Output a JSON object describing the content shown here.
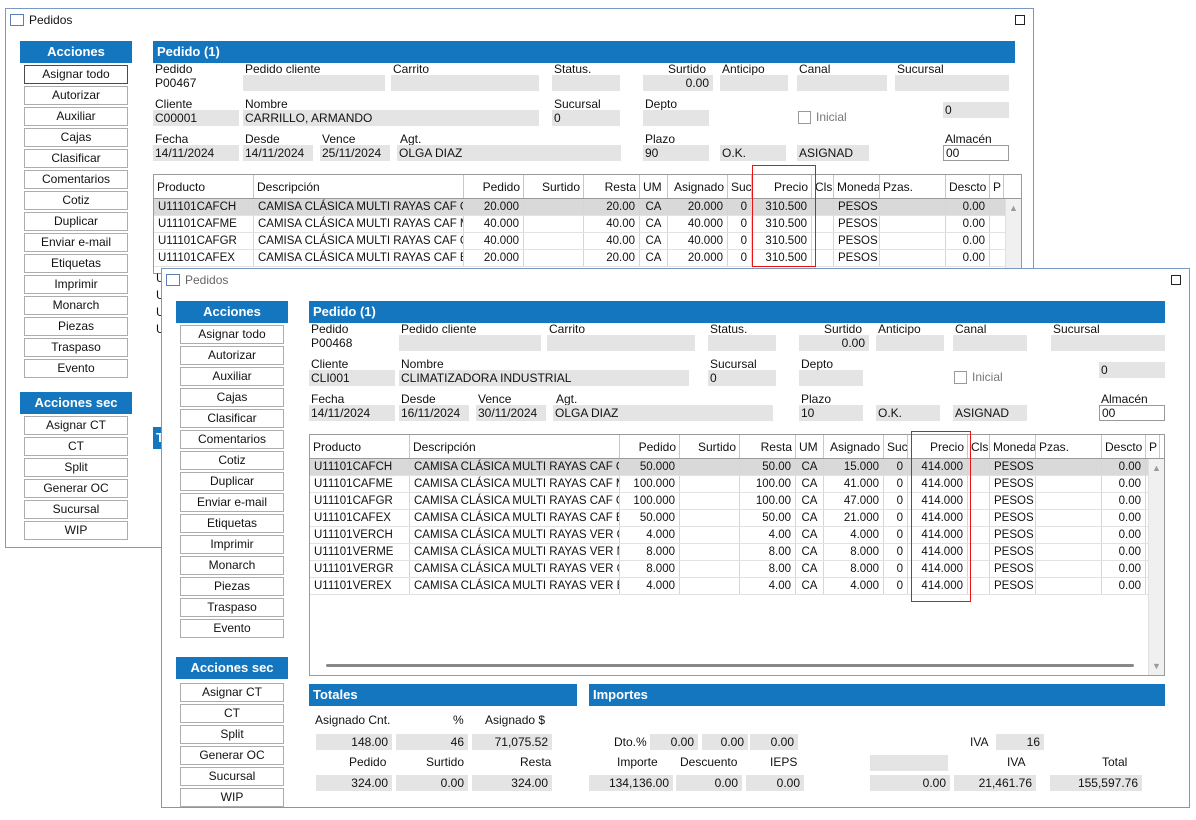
{
  "window_back": {
    "title": "Pedidos",
    "actions_header": "Acciones",
    "actions": [
      "Asignar todo",
      "Autorizar",
      "Auxiliar",
      "Cajas",
      "Clasificar",
      "Comentarios",
      "Cotiz",
      "Duplicar",
      "Enviar e-mail",
      "Etiquetas",
      "Imprimir",
      "Monarch",
      "Piezas",
      "Traspaso",
      "Evento"
    ],
    "actions_sec_header": "Acciones sec",
    "actions_sec": [
      "Asignar CT",
      "CT",
      "Split",
      "Generar OC",
      "Sucursal",
      "WIP"
    ],
    "section_title": "Pedido (1)",
    "labels": {
      "pedido": "Pedido",
      "pedido_cliente": "Pedido cliente",
      "carrito": "Carrito",
      "status": "Status.",
      "surtido": "Surtido",
      "anticipo": "Anticipo",
      "canal": "Canal",
      "sucursal": "Sucursal",
      "cliente": "Cliente",
      "nombre": "Nombre",
      "sucursal2": "Sucursal",
      "depto": "Depto",
      "inicial": "Inicial",
      "fecha": "Fecha",
      "desde": "Desde",
      "vence": "Vence",
      "agt": "Agt.",
      "plazo": "Plazo",
      "almacen": "Almacén"
    },
    "values": {
      "pedido": "P00467",
      "surtido": "0.00",
      "cliente": "C00001",
      "nombre": "CARRILLO, ARMANDO",
      "sucursal2": "0",
      "right_zero": "0",
      "fecha": "14/11/2024",
      "desde": "14/11/2024",
      "vence": "25/11/2024",
      "agt": "OLGA DIAZ",
      "plazo": "90",
      "ok": "O.K.",
      "asignad": "ASIGNAD",
      "almacen": "00"
    },
    "columns": [
      "Producto",
      "Descripción",
      "Pedido",
      "Surtido",
      "Resta",
      "UM",
      "Asignado",
      "Suc.",
      "Precio",
      "Cls",
      "Moneda",
      "Pzas.",
      "Descto",
      "P"
    ],
    "rows": [
      [
        "U11101CAFCH",
        "CAMISA CLÁSICA MULTI RAYAS CAF CH",
        "20.000",
        "",
        "20.00",
        "CA",
        "20.000",
        "0",
        "310.500",
        "",
        "PESOS",
        "",
        "0.00"
      ],
      [
        "U11101CAFME",
        "CAMISA CLÁSICA MULTI RAYAS CAF M",
        "40.000",
        "",
        "40.00",
        "CA",
        "40.000",
        "0",
        "310.500",
        "",
        "PESOS",
        "",
        "0.00"
      ],
      [
        "U11101CAFGR",
        "CAMISA CLÁSICA MULTI RAYAS CAF G",
        "40.000",
        "",
        "40.00",
        "CA",
        "40.000",
        "0",
        "310.500",
        "",
        "PESOS",
        "",
        "0.00"
      ],
      [
        "U11101CAFEX",
        "CAMISA CLÁSICA MULTI RAYAS CAF EX",
        "20.000",
        "",
        "20.00",
        "CA",
        "20.000",
        "0",
        "310.500",
        "",
        "PESOS",
        "",
        "0.00"
      ]
    ],
    "hidden_rows_prefix": [
      "U",
      "U",
      "U",
      "U"
    ],
    "totals_letter": "T"
  },
  "window_front": {
    "title": "Pedidos",
    "actions_header": "Acciones",
    "actions": [
      "Asignar todo",
      "Autorizar",
      "Auxiliar",
      "Cajas",
      "Clasificar",
      "Comentarios",
      "Cotiz",
      "Duplicar",
      "Enviar e-mail",
      "Etiquetas",
      "Imprimir",
      "Monarch",
      "Piezas",
      "Traspaso",
      "Evento"
    ],
    "actions_sec_header": "Acciones sec",
    "actions_sec": [
      "Asignar CT",
      "CT",
      "Split",
      "Generar OC",
      "Sucursal",
      "WIP"
    ],
    "section_title": "Pedido (1)",
    "labels": {
      "pedido": "Pedido",
      "pedido_cliente": "Pedido cliente",
      "carrito": "Carrito",
      "status": "Status.",
      "surtido": "Surtido",
      "anticipo": "Anticipo",
      "canal": "Canal",
      "sucursal": "Sucursal",
      "cliente": "Cliente",
      "nombre": "Nombre",
      "sucursal2": "Sucursal",
      "depto": "Depto",
      "inicial": "Inicial",
      "fecha": "Fecha",
      "desde": "Desde",
      "vence": "Vence",
      "agt": "Agt.",
      "plazo": "Plazo",
      "almacen": "Almacén"
    },
    "values": {
      "pedido": "P00468",
      "surtido": "0.00",
      "cliente": "CLI001",
      "nombre": "CLIMATIZADORA INDUSTRIAL",
      "sucursal2": "0",
      "right_zero": "0",
      "fecha": "14/11/2024",
      "desde": "16/11/2024",
      "vence": "30/11/2024",
      "agt": "OLGA DIAZ",
      "plazo": "10",
      "ok": "O.K.",
      "asignad": "ASIGNAD",
      "almacen": "00"
    },
    "columns": [
      "Producto",
      "Descripción",
      "Pedido",
      "Surtido",
      "Resta",
      "UM",
      "Asignado",
      "Suc.",
      "Precio",
      "Cls",
      "Moneda",
      "Pzas.",
      "Descto",
      "P"
    ],
    "rows": [
      [
        "U11101CAFCH",
        "CAMISA CLÁSICA MULTI RAYAS CAF CH",
        "50.000",
        "",
        "50.00",
        "CA",
        "15.000",
        "0",
        "414.000",
        "",
        "PESOS",
        "",
        "0.00"
      ],
      [
        "U11101CAFME",
        "CAMISA CLÁSICA MULTI RAYAS CAF M",
        "100.000",
        "",
        "100.00",
        "CA",
        "41.000",
        "0",
        "414.000",
        "",
        "PESOS",
        "",
        "0.00"
      ],
      [
        "U11101CAFGR",
        "CAMISA CLÁSICA MULTI RAYAS CAF G",
        "100.000",
        "",
        "100.00",
        "CA",
        "47.000",
        "0",
        "414.000",
        "",
        "PESOS",
        "",
        "0.00"
      ],
      [
        "U11101CAFEX",
        "CAMISA CLÁSICA MULTI RAYAS CAF EX",
        "50.000",
        "",
        "50.00",
        "CA",
        "21.000",
        "0",
        "414.000",
        "",
        "PESOS",
        "",
        "0.00"
      ],
      [
        "U11101VERCH",
        "CAMISA CLÁSICA MULTI RAYAS VER CH",
        "4.000",
        "",
        "4.00",
        "CA",
        "4.000",
        "0",
        "414.000",
        "",
        "PESOS",
        "",
        "0.00"
      ],
      [
        "U11101VERME",
        "CAMISA CLÁSICA MULTI RAYAS VER M",
        "8.000",
        "",
        "8.00",
        "CA",
        "8.000",
        "0",
        "414.000",
        "",
        "PESOS",
        "",
        "0.00"
      ],
      [
        "U11101VERGR",
        "CAMISA CLÁSICA MULTI RAYAS VER G",
        "8.000",
        "",
        "8.00",
        "CA",
        "8.000",
        "0",
        "414.000",
        "",
        "PESOS",
        "",
        "0.00"
      ],
      [
        "U11101VEREX",
        "CAMISA CLÁSICA MULTI RAYAS VER EX",
        "4.000",
        "",
        "4.00",
        "CA",
        "4.000",
        "0",
        "414.000",
        "",
        "PESOS",
        "",
        "0.00"
      ]
    ],
    "totales": {
      "title": "Totales",
      "asignado_cnt_label": "Asignado Cnt.",
      "pct_label": "%",
      "asignado_s_label": "Asignado $",
      "asignado_cnt": "148.00",
      "pct": "46",
      "asignado_s": "71,075.52",
      "pedido_label": "Pedido",
      "surtido_label": "Surtido",
      "resta_label": "Resta",
      "pedido": "324.00",
      "surtido": "0.00",
      "resta": "324.00"
    },
    "importes": {
      "title": "Importes",
      "dto_label": "Dto.%",
      "dto1": "0.00",
      "dto2": "0.00",
      "dto3": "0.00",
      "iva_pct_label": "IVA",
      "iva_pct": "16",
      "importe_label": "Importe",
      "descuento_label": "Descuento",
      "ieps_label": "IEPS",
      "iva_label": "IVA",
      "total_label": "Total",
      "importe": "134,136.00",
      "descuento": "0.00",
      "ieps": "0.00",
      "extra": "0.00",
      "iva": "21,461.76",
      "total": "155,597.76"
    }
  },
  "colors": {
    "accent": "#1476bf",
    "highlight_box": "#e11111",
    "selected_row": "#d9d9d9",
    "field_bg": "#e4e4e4"
  }
}
